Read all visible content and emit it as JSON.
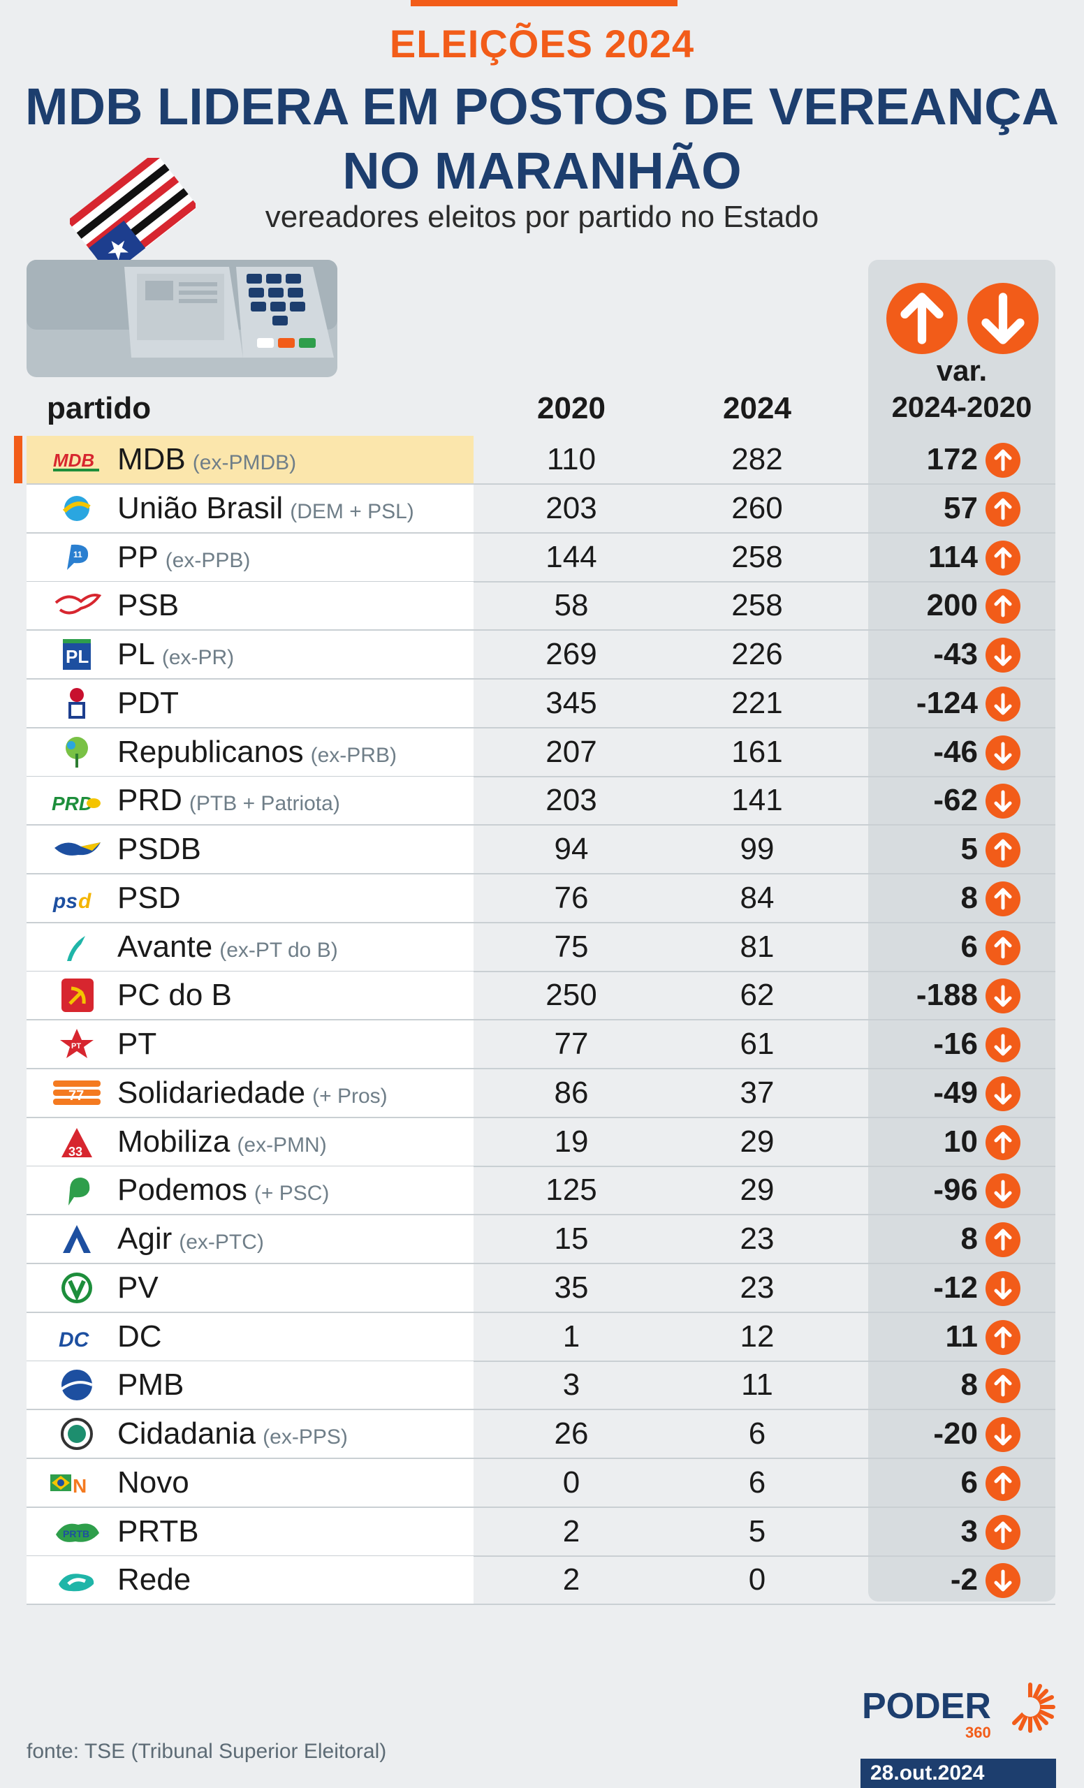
{
  "kicker": "ELEIÇÕES 2024",
  "title_line1": "MDB LIDERA EM POSTOS DE VEREANÇA",
  "title_line2": "NO MARANHÃO",
  "subtitle": "vereadores eleitos por partido no Estado",
  "columns": {
    "party": "partido",
    "y2020": "2020",
    "y2024": "2024",
    "var_line1": "var.",
    "var_line2": "2024-2020"
  },
  "colors": {
    "accent": "#f25c19",
    "title": "#1d3e6e",
    "highlight": "#fbe6ac",
    "variation_column": "#d7dcdf"
  },
  "chart_data": {
    "type": "table",
    "title": "MDB LIDERA EM POSTOS DE VEREANÇA NO MARANHÃO",
    "subtitle": "vereadores eleitos por partido no Estado",
    "columns": [
      "partido",
      "2020",
      "2024",
      "var. 2024-2020"
    ],
    "rows": [
      {
        "party": "MDB",
        "note": "(ex-PMDB)",
        "logo": "mdb-logo",
        "v2020": 110,
        "v2024": 282,
        "var": "172",
        "dir": "up",
        "highlight": true
      },
      {
        "party": "União Brasil",
        "note": "(DEM + PSL)",
        "logo": "uniao-brasil-logo",
        "v2020": 203,
        "v2024": 260,
        "var": "57",
        "dir": "up"
      },
      {
        "party": "PP",
        "note": "(ex-PPB)",
        "logo": "pp-logo",
        "v2020": 144,
        "v2024": 258,
        "var": "114",
        "dir": "up"
      },
      {
        "party": "PSB",
        "note": "",
        "logo": "psb-logo",
        "v2020": 58,
        "v2024": 258,
        "var": "200",
        "dir": "up"
      },
      {
        "party": "PL",
        "note": "(ex-PR)",
        "logo": "pl-logo",
        "v2020": 269,
        "v2024": 226,
        "var": "-43",
        "dir": "down"
      },
      {
        "party": "PDT",
        "note": "",
        "logo": "pdt-logo",
        "v2020": 345,
        "v2024": 221,
        "var": "-124",
        "dir": "down"
      },
      {
        "party": "Republicanos",
        "note": "(ex-PRB)",
        "logo": "republicanos-logo",
        "v2020": 207,
        "v2024": 161,
        "var": "-46",
        "dir": "down"
      },
      {
        "party": "PRD",
        "note": "(PTB + Patriota)",
        "logo": "prd-logo",
        "v2020": 203,
        "v2024": 141,
        "var": "-62",
        "dir": "down"
      },
      {
        "party": "PSDB",
        "note": "",
        "logo": "psdb-logo",
        "v2020": 94,
        "v2024": 99,
        "var": "5",
        "dir": "up"
      },
      {
        "party": "PSD",
        "note": "",
        "logo": "psd-logo",
        "v2020": 76,
        "v2024": 84,
        "var": "8",
        "dir": "up"
      },
      {
        "party": "Avante",
        "note": "(ex-PT do B)",
        "logo": "avante-logo",
        "v2020": 75,
        "v2024": 81,
        "var": "6",
        "dir": "up"
      },
      {
        "party": "PC do B",
        "note": "",
        "logo": "pcdob-logo",
        "v2020": 250,
        "v2024": 62,
        "var": "-188",
        "dir": "down"
      },
      {
        "party": "PT",
        "note": "",
        "logo": "pt-logo",
        "v2020": 77,
        "v2024": 61,
        "var": "-16",
        "dir": "down"
      },
      {
        "party": "Solidariedade",
        "note": "(+ Pros)",
        "logo": "solidariedade-logo",
        "v2020": 86,
        "v2024": 37,
        "var": "-49",
        "dir": "down"
      },
      {
        "party": "Mobiliza",
        "note": "(ex-PMN)",
        "logo": "mobiliza-logo",
        "v2020": 19,
        "v2024": 29,
        "var": "10",
        "dir": "up"
      },
      {
        "party": "Podemos",
        "note": "(+ PSC)",
        "logo": "podemos-logo",
        "v2020": 125,
        "v2024": 29,
        "var": "-96",
        "dir": "down"
      },
      {
        "party": "Agir",
        "note": "(ex-PTC)",
        "logo": "agir-logo",
        "v2020": 15,
        "v2024": 23,
        "var": "8",
        "dir": "up"
      },
      {
        "party": "PV",
        "note": "",
        "logo": "pv-logo",
        "v2020": 35,
        "v2024": 23,
        "var": "-12",
        "dir": "down"
      },
      {
        "party": "DC",
        "note": "",
        "logo": "dc-logo",
        "v2020": 1,
        "v2024": 12,
        "var": "11",
        "dir": "up"
      },
      {
        "party": "PMB",
        "note": "",
        "logo": "pmb-logo",
        "v2020": 3,
        "v2024": 11,
        "var": "8",
        "dir": "up"
      },
      {
        "party": "Cidadania",
        "note": "(ex-PPS)",
        "logo": "cidadania-logo",
        "v2020": 26,
        "v2024": 6,
        "var": "-20",
        "dir": "down"
      },
      {
        "party": "Novo",
        "note": "",
        "logo": "novo-logo",
        "v2020": 0,
        "v2024": 6,
        "var": "6",
        "dir": "up"
      },
      {
        "party": "PRTB",
        "note": "",
        "logo": "prtb-logo",
        "v2020": 2,
        "v2024": 5,
        "var": "3",
        "dir": "up"
      },
      {
        "party": "Rede",
        "note": "",
        "logo": "rede-logo",
        "v2020": 2,
        "v2024": 0,
        "var": "-2",
        "dir": "down"
      }
    ]
  },
  "footer": {
    "source": "fonte: TSE (Tribunal Superior Eleitoral)",
    "brand": "PODER",
    "brand_sub": "360",
    "date": "28.out.2024"
  }
}
